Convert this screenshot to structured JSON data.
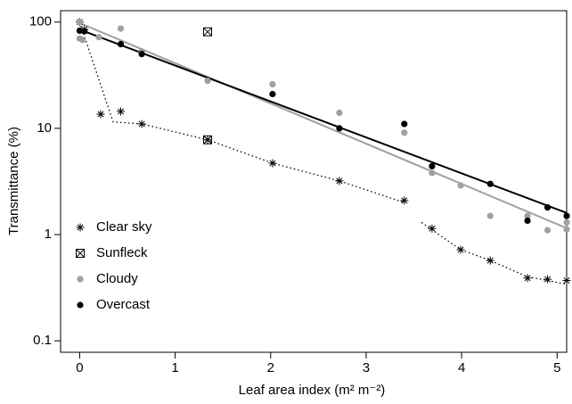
{
  "chart_data": {
    "type": "scatter",
    "xlabel": "Leaf area index (m² m⁻²)",
    "ylabel": "Transmittance (%)",
    "xlim": [
      -0.2,
      5.1
    ],
    "xticks": [
      0,
      1,
      2,
      3,
      4,
      5
    ],
    "ylim": [
      0.078,
      128
    ],
    "yticks": [
      0.1,
      1,
      10,
      100
    ],
    "ylog": true,
    "legend": "bottomleft",
    "series": [
      {
        "name": "Clear sky",
        "color": "#000000",
        "marker": "asterisk",
        "x": [
          0,
          0.05,
          0.22,
          0.43,
          0.65,
          1.34,
          2.02,
          2.72,
          3.4,
          3.69,
          3.99,
          4.3,
          4.69,
          4.9,
          5.1
        ],
        "values": [
          100,
          85,
          13.6,
          14.4,
          11,
          7.8,
          4.7,
          3.2,
          2.09,
          1.14,
          0.72,
          0.57,
          0.39,
          0.38,
          0.37
        ]
      },
      {
        "name": "Sunfleck",
        "color": "#000000",
        "marker": "boxx",
        "x": [
          1.34,
          1.34
        ],
        "values": [
          81,
          7.8
        ]
      },
      {
        "name": "Cloudy",
        "color": "#a0a0a0",
        "marker": "circle",
        "x": [
          0,
          0,
          0.03,
          0.2,
          0.43,
          0.65,
          1.34,
          2.02,
          2.72,
          3.4,
          3.69,
          3.99,
          4.3,
          4.69,
          4.9,
          5.1,
          5.1
        ],
        "values": [
          100,
          70,
          68,
          72,
          87,
          53,
          28,
          26,
          14,
          9.1,
          3.8,
          2.9,
          1.5,
          1.5,
          1.1,
          1.3,
          1.12
        ]
      },
      {
        "name": "Overcast",
        "color": "#000000",
        "marker": "circle",
        "x": [
          0,
          0.05,
          0.43,
          0.65,
          2.02,
          2.72,
          3.4,
          3.69,
          4.3,
          4.69,
          4.9,
          5.1
        ],
        "values": [
          83,
          82,
          62,
          50,
          21,
          10,
          11,
          4.4,
          3.0,
          1.35,
          1.8,
          1.5
        ]
      }
    ],
    "lines": [
      {
        "color": "#000000",
        "style": "dotted",
        "x": [
          0,
          0.35,
          0.65,
          1.34,
          2.02,
          2.72,
          3.4,
          3.5,
          3.58,
          3.99,
          4.3,
          4.69,
          4.9,
          5.1
        ],
        "values": [
          100,
          11.5,
          11,
          7.8,
          4.7,
          3.2,
          2.0,
          null,
          1.3,
          0.72,
          0.57,
          0.4,
          0.37,
          0.34
        ]
      },
      {
        "color": "#a0a0a0",
        "style": "solid",
        "x": [
          0,
          5.1
        ],
        "values": [
          98,
          1.15
        ]
      },
      {
        "color": "#000000",
        "style": "solid",
        "x": [
          0,
          5.1
        ],
        "values": [
          85,
          1.6
        ]
      }
    ]
  }
}
